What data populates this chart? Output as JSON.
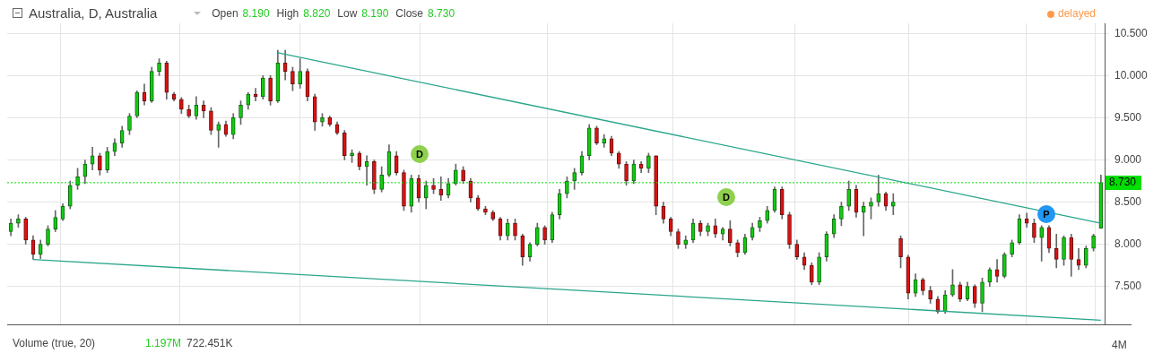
{
  "chart_data": {
    "type": "candlestick",
    "title": "Australia, D, Australia",
    "categories": [
      null,
      null,
      null,
      null,
      null,
      null,
      null,
      null,
      null,
      null,
      null,
      null,
      null,
      null,
      null,
      null,
      null,
      null,
      null,
      null,
      null,
      null,
      null,
      null,
      null,
      null,
      null,
      null,
      null,
      null,
      null,
      null,
      null,
      null,
      null,
      null,
      null,
      null,
      null,
      null,
      null,
      null,
      null,
      null,
      null,
      null,
      null,
      null,
      null,
      null,
      null,
      null,
      null,
      null,
      null,
      null,
      null,
      null,
      null,
      null,
      null,
      null,
      null,
      null,
      null,
      null,
      null,
      null,
      null,
      null,
      null,
      null,
      null,
      null,
      null,
      null,
      null,
      null,
      null,
      null,
      null,
      null,
      null,
      null,
      null,
      null,
      null,
      null,
      null,
      null,
      null,
      null,
      null,
      null,
      null,
      null,
      null,
      null,
      null,
      null,
      null,
      null,
      null,
      null,
      null,
      null,
      null,
      null,
      null,
      null,
      null,
      null,
      null,
      null,
      null,
      null,
      null,
      null,
      null,
      null,
      null,
      null,
      null,
      null,
      null,
      null,
      null,
      null,
      null,
      null,
      null,
      null,
      null,
      null,
      null,
      null,
      null,
      null,
      null,
      null,
      null,
      null,
      null,
      null,
      null,
      null,
      null,
      null
    ],
    "ohlc": [
      [
        8.15,
        8.3,
        8.1,
        8.25
      ],
      [
        8.25,
        8.35,
        8.2,
        8.3
      ],
      [
        8.3,
        8.32,
        8.0,
        8.05
      ],
      [
        8.05,
        8.1,
        7.82,
        7.88
      ],
      [
        7.88,
        8.05,
        7.83,
        8.0
      ],
      [
        8.0,
        8.22,
        7.98,
        8.18
      ],
      [
        8.18,
        8.4,
        8.15,
        8.32
      ],
      [
        8.3,
        8.48,
        8.28,
        8.45
      ],
      [
        8.45,
        8.75,
        8.42,
        8.7
      ],
      [
        8.7,
        8.9,
        8.65,
        8.8
      ],
      [
        8.8,
        9.0,
        8.72,
        8.95
      ],
      [
        8.95,
        9.15,
        8.88,
        9.05
      ],
      [
        9.05,
        9.08,
        8.82,
        8.88
      ],
      [
        8.88,
        9.15,
        8.85,
        9.1
      ],
      [
        9.1,
        9.25,
        9.05,
        9.2
      ],
      [
        9.2,
        9.4,
        9.15,
        9.35
      ],
      [
        9.35,
        9.55,
        9.3,
        9.52
      ],
      [
        9.52,
        9.82,
        9.5,
        9.8
      ],
      [
        9.8,
        9.9,
        9.65,
        9.7
      ],
      [
        9.7,
        10.1,
        9.68,
        10.05
      ],
      [
        10.05,
        10.2,
        10.0,
        10.15
      ],
      [
        10.15,
        10.17,
        9.72,
        9.8
      ],
      [
        9.78,
        9.8,
        9.7,
        9.72
      ],
      [
        9.72,
        9.74,
        9.55,
        9.6
      ],
      [
        9.6,
        9.65,
        9.5,
        9.52
      ],
      [
        9.52,
        9.75,
        9.48,
        9.65
      ],
      [
        9.65,
        9.7,
        9.5,
        9.58
      ],
      [
        9.58,
        9.62,
        9.3,
        9.35
      ],
      [
        9.35,
        9.45,
        9.15,
        9.42
      ],
      [
        9.42,
        9.46,
        9.28,
        9.3
      ],
      [
        9.3,
        9.55,
        9.25,
        9.5
      ],
      [
        9.5,
        9.7,
        9.42,
        9.65
      ],
      [
        9.65,
        9.8,
        9.6,
        9.78
      ],
      [
        9.78,
        9.85,
        9.7,
        9.75
      ],
      [
        9.75,
        10.0,
        9.72,
        9.97
      ],
      [
        9.97,
        10.0,
        9.65,
        9.7
      ],
      [
        9.7,
        10.3,
        9.68,
        10.15
      ],
      [
        10.15,
        10.3,
        9.95,
        10.05
      ],
      [
        10.05,
        10.1,
        9.82,
        9.9
      ],
      [
        9.9,
        10.2,
        9.85,
        10.05
      ],
      [
        10.05,
        10.08,
        9.7,
        9.75
      ],
      [
        9.75,
        9.78,
        9.35,
        9.45
      ],
      [
        9.45,
        9.55,
        9.4,
        9.5
      ],
      [
        9.5,
        9.52,
        9.4,
        9.42
      ],
      [
        9.42,
        9.45,
        9.3,
        9.32
      ],
      [
        9.32,
        9.35,
        9.0,
        9.05
      ],
      [
        9.05,
        9.12,
        8.97,
        9.08
      ],
      [
        9.08,
        9.1,
        8.88,
        8.92
      ],
      [
        8.92,
        9.05,
        8.7,
        8.98
      ],
      [
        8.98,
        9.0,
        8.6,
        8.65
      ],
      [
        8.65,
        8.92,
        8.62,
        8.82
      ],
      [
        8.82,
        9.18,
        8.8,
        9.1
      ],
      [
        9.05,
        9.1,
        8.82,
        8.85
      ],
      [
        8.85,
        8.88,
        8.4,
        8.45
      ],
      [
        8.45,
        8.82,
        8.38,
        8.78
      ],
      [
        8.78,
        8.82,
        8.5,
        8.55
      ],
      [
        8.55,
        8.75,
        8.42,
        8.7
      ],
      [
        8.7,
        8.78,
        8.6,
        8.65
      ],
      [
        8.65,
        8.8,
        8.52,
        8.58
      ],
      [
        8.58,
        8.78,
        8.55,
        8.72
      ],
      [
        8.72,
        8.95,
        8.7,
        8.88
      ],
      [
        8.88,
        8.92,
        8.72,
        8.75
      ],
      [
        8.75,
        8.78,
        8.5,
        8.55
      ],
      [
        8.55,
        8.58,
        8.4,
        8.42
      ],
      [
        8.42,
        8.45,
        8.35,
        8.38
      ],
      [
        8.38,
        8.4,
        8.28,
        8.3
      ],
      [
        8.3,
        8.32,
        8.05,
        8.1
      ],
      [
        8.1,
        8.3,
        8.05,
        8.25
      ],
      [
        8.25,
        8.3,
        8.05,
        8.1
      ],
      [
        8.1,
        8.12,
        7.75,
        7.85
      ],
      [
        7.85,
        8.02,
        7.8,
        8.0
      ],
      [
        8.0,
        8.25,
        7.98,
        8.2
      ],
      [
        8.2,
        8.22,
        8.0,
        8.05
      ],
      [
        8.05,
        8.38,
        8.02,
        8.35
      ],
      [
        8.35,
        8.65,
        8.3,
        8.6
      ],
      [
        8.6,
        8.8,
        8.55,
        8.75
      ],
      [
        8.75,
        8.9,
        8.65,
        8.85
      ],
      [
        8.85,
        9.1,
        8.82,
        9.05
      ],
      [
        9.05,
        9.42,
        9.0,
        9.38
      ],
      [
        9.38,
        9.4,
        9.18,
        9.2
      ],
      [
        9.2,
        9.3,
        9.15,
        9.25
      ],
      [
        9.25,
        9.28,
        9.05,
        9.08
      ],
      [
        9.08,
        9.1,
        8.9,
        8.95
      ],
      [
        8.95,
        8.98,
        8.7,
        8.75
      ],
      [
        8.75,
        9.0,
        8.72,
        8.95
      ],
      [
        8.95,
        8.98,
        8.85,
        8.9
      ],
      [
        8.9,
        9.08,
        8.85,
        9.05
      ],
      [
        9.05,
        9.05,
        8.35,
        8.45
      ],
      [
        8.45,
        8.5,
        8.25,
        8.3
      ],
      [
        8.3,
        8.32,
        8.1,
        8.15
      ],
      [
        8.15,
        8.18,
        7.95,
        8.0
      ],
      [
        8.0,
        8.1,
        7.95,
        8.05
      ],
      [
        8.05,
        8.3,
        8.02,
        8.25
      ],
      [
        8.25,
        8.28,
        8.1,
        8.15
      ],
      [
        8.15,
        8.25,
        8.1,
        8.22
      ],
      [
        8.22,
        8.3,
        8.08,
        8.12
      ],
      [
        8.12,
        8.2,
        8.05,
        8.18
      ],
      [
        8.18,
        8.28,
        7.98,
        8.02
      ],
      [
        8.02,
        8.05,
        7.85,
        7.9
      ],
      [
        7.9,
        8.12,
        7.88,
        8.08
      ],
      [
        8.08,
        8.25,
        8.05,
        8.2
      ],
      [
        8.2,
        8.32,
        8.15,
        8.28
      ],
      [
        8.28,
        8.45,
        8.25,
        8.4
      ],
      [
        8.4,
        8.68,
        8.38,
        8.65
      ],
      [
        8.65,
        8.68,
        8.3,
        8.35
      ],
      [
        8.35,
        8.38,
        7.95,
        8.0
      ],
      [
        8.0,
        8.05,
        7.82,
        7.85
      ],
      [
        7.85,
        7.9,
        7.7,
        7.75
      ],
      [
        7.75,
        7.78,
        7.52,
        7.55
      ],
      [
        7.55,
        7.9,
        7.52,
        7.85
      ],
      [
        7.85,
        8.15,
        7.8,
        8.12
      ],
      [
        8.12,
        8.35,
        8.08,
        8.3
      ],
      [
        8.3,
        8.5,
        8.22,
        8.45
      ],
      [
        8.45,
        8.75,
        8.4,
        8.65
      ],
      [
        8.65,
        8.7,
        8.32,
        8.38
      ],
      [
        8.38,
        8.5,
        8.1,
        8.45
      ],
      [
        8.45,
        8.55,
        8.3,
        8.5
      ],
      [
        8.5,
        8.82,
        8.45,
        8.6
      ],
      [
        8.6,
        8.62,
        8.4,
        8.45
      ],
      [
        8.45,
        8.6,
        8.35,
        8.5
      ],
      [
        8.07,
        8.1,
        7.72,
        7.85
      ],
      [
        7.85,
        7.87,
        7.35,
        7.42
      ],
      [
        7.42,
        7.65,
        7.38,
        7.58
      ],
      [
        7.58,
        7.6,
        7.4,
        7.45
      ],
      [
        7.45,
        7.5,
        7.3,
        7.35
      ],
      [
        7.35,
        7.38,
        7.18,
        7.2
      ],
      [
        7.2,
        7.45,
        7.18,
        7.4
      ],
      [
        7.4,
        7.7,
        7.38,
        7.52
      ],
      [
        7.52,
        7.55,
        7.32,
        7.35
      ],
      [
        7.35,
        7.55,
        7.33,
        7.5
      ],
      [
        7.5,
        7.52,
        7.25,
        7.3
      ],
      [
        7.3,
        7.6,
        7.2,
        7.55
      ],
      [
        7.55,
        7.72,
        7.5,
        7.7
      ],
      [
        7.7,
        7.82,
        7.55,
        7.62
      ],
      [
        7.62,
        7.9,
        7.6,
        7.88
      ],
      [
        7.88,
        8.05,
        7.85,
        8.02
      ],
      [
        8.02,
        8.35,
        8.0,
        8.3
      ],
      [
        8.3,
        8.37,
        8.2,
        8.25
      ],
      [
        8.25,
        8.3,
        8.02,
        8.08
      ],
      [
        8.08,
        8.22,
        7.8,
        8.2
      ],
      [
        8.2,
        8.22,
        7.9,
        7.95
      ],
      [
        7.95,
        8.12,
        7.72,
        7.82
      ],
      [
        7.82,
        8.1,
        7.75,
        8.08
      ],
      [
        8.08,
        8.12,
        7.62,
        7.82
      ],
      [
        7.82,
        7.95,
        7.7,
        7.75
      ],
      [
        7.75,
        7.98,
        7.72,
        7.95
      ],
      [
        7.95,
        8.12,
        7.92,
        8.1
      ],
      [
        8.19,
        8.82,
        8.19,
        8.73
      ]
    ],
    "series": [
      {
        "type": "line",
        "values": [
          null,
          null,
          null,
          null,
          null,
          null,
          null,
          null,
          null,
          null,
          null,
          null,
          null,
          null,
          null,
          null,
          null,
          null,
          null,
          null,
          null,
          null,
          null,
          null,
          null,
          null,
          null,
          null,
          null,
          null,
          null,
          null,
          null,
          null,
          null,
          null,
          10.27,
          null,
          null,
          null,
          null,
          null,
          null,
          null,
          null,
          null,
          null,
          null,
          null,
          null,
          null,
          null,
          null,
          null,
          null,
          null,
          null,
          null,
          null,
          null,
          null,
          null,
          null,
          null,
          null,
          null,
          null,
          null,
          null,
          null,
          null,
          null,
          null,
          null,
          null,
          null,
          null,
          null,
          null,
          null,
          null,
          null,
          null,
          null,
          null,
          null,
          null,
          null,
          null,
          null,
          null,
          null,
          null,
          null,
          null,
          null,
          null,
          null,
          null,
          null,
          null,
          null,
          null,
          null,
          null,
          null,
          null,
          null,
          null,
          null,
          null,
          null,
          null,
          null,
          null,
          null,
          null,
          null,
          null,
          null,
          null,
          null,
          null,
          null,
          null,
          null,
          null,
          null,
          null,
          null,
          null,
          null,
          null,
          null,
          null,
          null,
          null,
          null,
          null,
          null,
          null,
          null,
          null,
          null,
          null,
          null,
          null,
          8.25
        ],
        "color": "#2aa58c"
      },
      {
        "type": "line",
        "values": [
          null,
          null,
          null,
          7.82,
          null,
          null,
          null,
          null,
          null,
          null,
          null,
          null,
          null,
          null,
          null,
          null,
          null,
          null,
          null,
          null,
          null,
          null,
          null,
          null,
          null,
          null,
          null,
          null,
          null,
          null,
          null,
          null,
          null,
          null,
          null,
          null,
          null,
          null,
          null,
          null,
          null,
          null,
          null,
          null,
          null,
          null,
          null,
          null,
          null,
          null,
          null,
          null,
          null,
          null,
          null,
          null,
          null,
          null,
          null,
          null,
          null,
          null,
          null,
          null,
          null,
          null,
          null,
          null,
          null,
          null,
          null,
          null,
          null,
          null,
          null,
          null,
          null,
          null,
          null,
          null,
          null,
          null,
          null,
          null,
          null,
          null,
          null,
          null,
          null,
          null,
          null,
          null,
          null,
          null,
          null,
          null,
          null,
          null,
          null,
          null,
          null,
          null,
          null,
          null,
          null,
          null,
          null,
          null,
          null,
          null,
          null,
          null,
          null,
          null,
          null,
          null,
          null,
          null,
          null,
          null,
          null,
          null,
          null,
          null,
          null,
          null,
          null,
          null,
          null,
          null,
          null,
          null,
          null,
          null,
          null,
          null,
          null,
          null,
          null,
          null,
          null,
          null,
          null,
          null,
          null,
          null,
          null,
          7.1
        ],
        "color": "#2aa58c"
      }
    ],
    "ylim": [
      7.05,
      10.62
    ],
    "yticks": [
      {
        "value": 7.5,
        "label": "7.500"
      },
      {
        "value": 8,
        "label": "8.000"
      },
      {
        "value": 8.5,
        "label": "8.500"
      },
      {
        "value": 9,
        "label": "9.000"
      },
      {
        "value": 9.5,
        "label": "9.500"
      },
      {
        "value": 10,
        "label": "10.000"
      },
      {
        "value": 10.5,
        "label": "10.500"
      }
    ],
    "tick_labels": "y",
    "grid": "y",
    "legend": false,
    "ref_lines": [
      {
        "axis": "y",
        "value": 8.73,
        "label": "8.730",
        "color": "#00e000",
        "line_style": "dotted"
      }
    ],
    "annotations": [
      "Open 8.190",
      "High 8.820",
      "Low 8.190",
      "Close 8.730",
      "delayed",
      "Volume (true, 20)",
      "1.197M",
      "722.451K",
      "4M",
      "D",
      "D",
      "P"
    ]
  }
}
